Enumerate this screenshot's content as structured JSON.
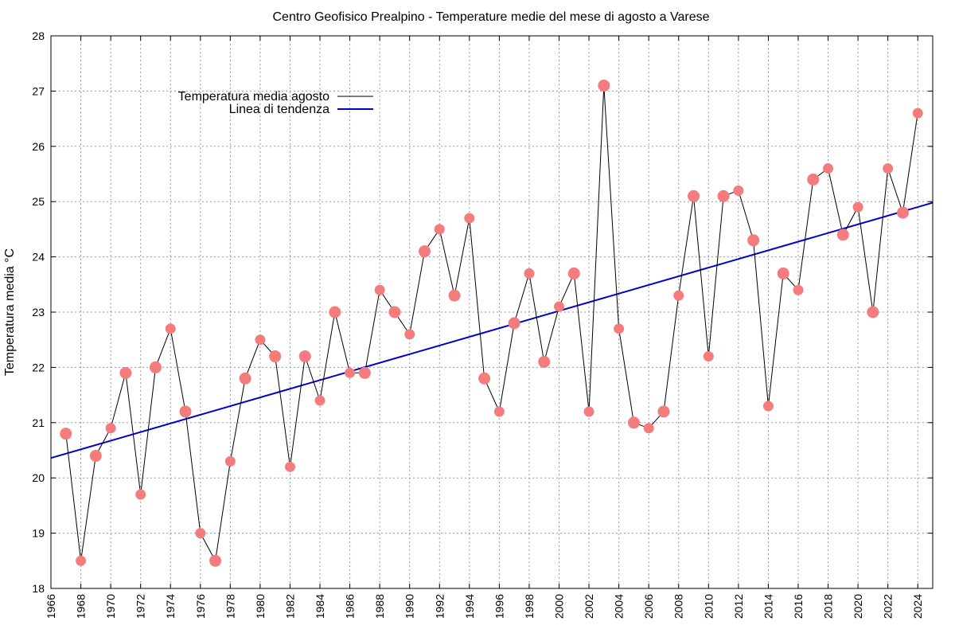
{
  "chart_data": {
    "type": "line",
    "title": "Centro Geofisico Prealpino - Temperature medie del mese di agosto a Varese",
    "xlabel": "",
    "ylabel": "Temperatura media °C",
    "xlim": [
      1966,
      2025
    ],
    "ylim": [
      18,
      28
    ],
    "x_ticks": [
      1966,
      1968,
      1970,
      1972,
      1974,
      1976,
      1978,
      1980,
      1982,
      1984,
      1986,
      1988,
      1990,
      1992,
      1994,
      1996,
      1998,
      2000,
      2002,
      2004,
      2006,
      2008,
      2010,
      2012,
      2014,
      2016,
      2018,
      2020,
      2022,
      2024
    ],
    "y_ticks": [
      18,
      19,
      20,
      21,
      22,
      23,
      24,
      25,
      26,
      27,
      28
    ],
    "grid": true,
    "legend_position": "top-left",
    "series": [
      {
        "name": "Temperatura media agosto",
        "color": "#000000",
        "marker_color": "#f47c7c",
        "x": [
          1967,
          1968,
          1969,
          1970,
          1971,
          1972,
          1973,
          1974,
          1975,
          1976,
          1977,
          1978,
          1979,
          1980,
          1981,
          1982,
          1983,
          1984,
          1985,
          1986,
          1987,
          1988,
          1989,
          1990,
          1991,
          1992,
          1993,
          1994,
          1995,
          1996,
          1997,
          1998,
          1999,
          2000,
          2001,
          2002,
          2003,
          2004,
          2005,
          2006,
          2007,
          2008,
          2009,
          2010,
          2011,
          2012,
          2013,
          2014,
          2015,
          2016,
          2017,
          2018,
          2019,
          2020,
          2021,
          2022,
          2023,
          2024
        ],
        "values": [
          20.8,
          18.5,
          20.4,
          20.9,
          21.9,
          19.7,
          22.0,
          22.7,
          21.2,
          19.0,
          18.5,
          20.3,
          21.8,
          22.5,
          22.2,
          20.2,
          22.2,
          21.4,
          23.0,
          21.9,
          21.9,
          23.4,
          23.0,
          22.6,
          24.1,
          24.5,
          23.3,
          24.7,
          21.8,
          21.2,
          22.8,
          23.7,
          22.1,
          23.1,
          23.7,
          21.2,
          27.1,
          22.7,
          21.0,
          20.9,
          21.2,
          23.3,
          25.1,
          22.2,
          25.1,
          25.2,
          24.3,
          21.3,
          23.7,
          23.4,
          25.4,
          25.6,
          24.4,
          24.9,
          23.0,
          25.6,
          24.8,
          26.6
        ]
      },
      {
        "name": "Linea di tendenza",
        "color": "#0000cc",
        "x": [
          1966,
          2025
        ],
        "values": [
          20.36,
          24.98
        ]
      }
    ]
  }
}
